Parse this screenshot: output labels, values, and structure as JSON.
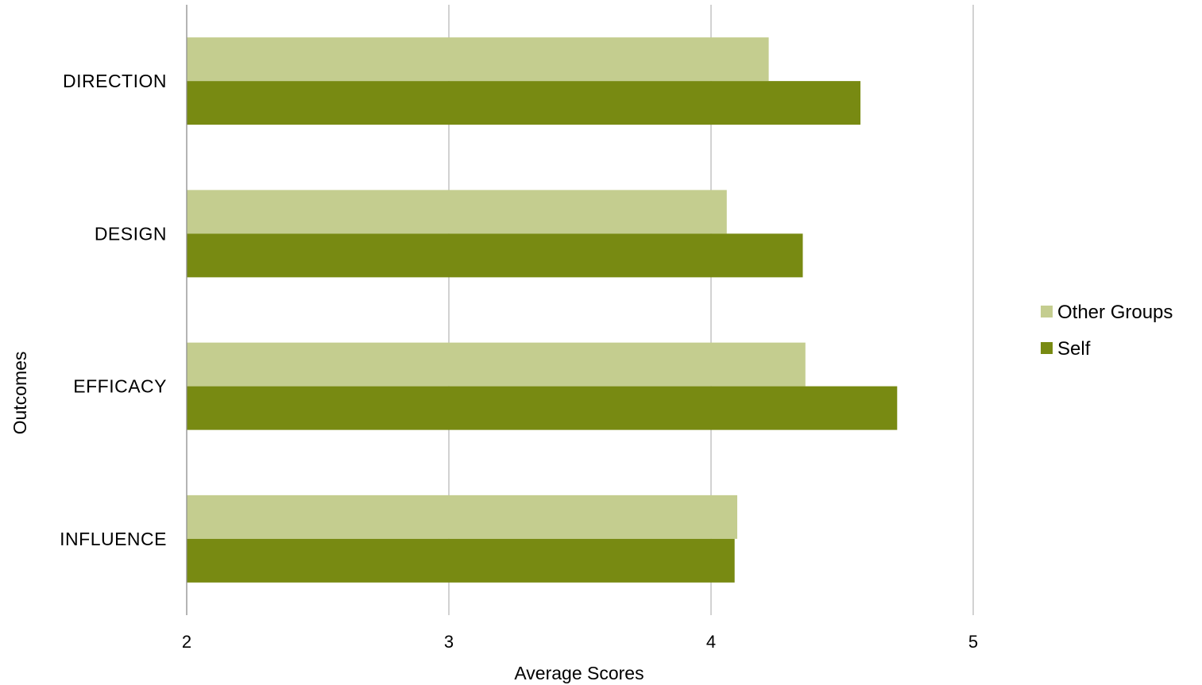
{
  "chart_data": {
    "type": "bar",
    "orientation": "horizontal",
    "categories": [
      "DIRECTION",
      "DESIGN",
      "EFFICACY",
      "INFLUENCE"
    ],
    "series": [
      {
        "name": "Other Groups",
        "color": "#c4cd8f",
        "values": [
          4.22,
          4.06,
          4.36,
          4.1
        ]
      },
      {
        "name": "Self",
        "color": "#788a12",
        "values": [
          4.57,
          4.35,
          4.71,
          4.09
        ]
      }
    ],
    "xlabel": "Average Scores",
    "ylabel": "Outcomes",
    "xlim": [
      2,
      5
    ],
    "xticks": [
      "2",
      "3",
      "4",
      "5"
    ],
    "grid": true,
    "legend": "right"
  }
}
